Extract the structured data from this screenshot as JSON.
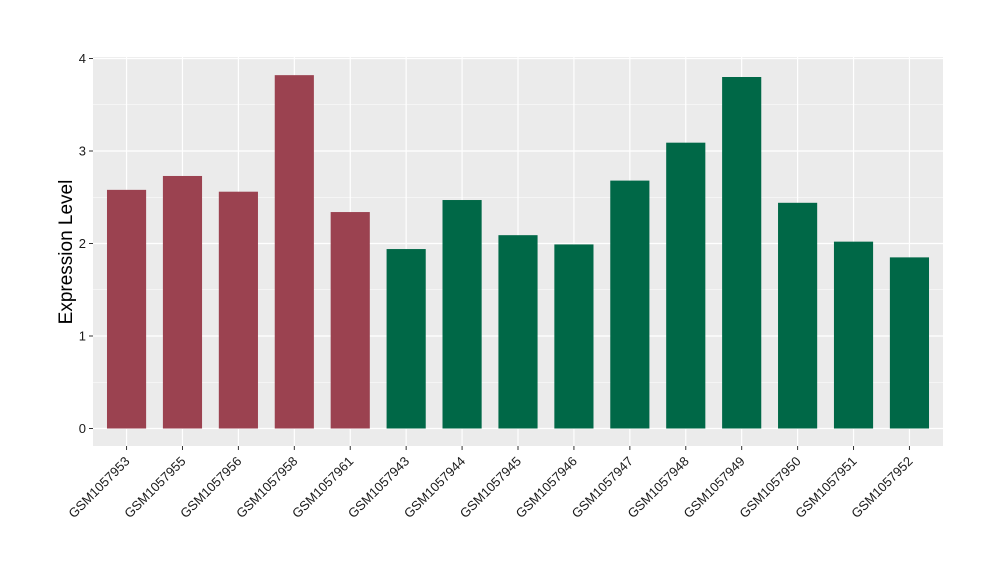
{
  "chart_data": {
    "type": "bar",
    "ylabel": "Expression Level",
    "xlabel": "",
    "ylim": [
      0,
      4
    ],
    "yticks": [
      0,
      1,
      2,
      3,
      4
    ],
    "grid": true,
    "colors": {
      "group1": "#9b4250",
      "group2": "#006847",
      "panel": "#ebebeb",
      "grid": "#ffffff"
    },
    "categories": [
      "GSM1057953",
      "GSM1057955",
      "GSM1057956",
      "GSM1057958",
      "GSM1057961",
      "GSM1057943",
      "GSM1057944",
      "GSM1057945",
      "GSM1057946",
      "GSM1057947",
      "GSM1057948",
      "GSM1057949",
      "GSM1057950",
      "GSM1057951",
      "GSM1057952"
    ],
    "values": [
      2.58,
      2.73,
      2.56,
      3.82,
      2.34,
      1.94,
      2.47,
      2.09,
      1.99,
      2.68,
      3.09,
      3.8,
      2.44,
      2.02,
      1.85
    ],
    "groups": [
      1,
      1,
      1,
      1,
      1,
      2,
      2,
      2,
      2,
      2,
      2,
      2,
      2,
      2,
      2
    ]
  }
}
